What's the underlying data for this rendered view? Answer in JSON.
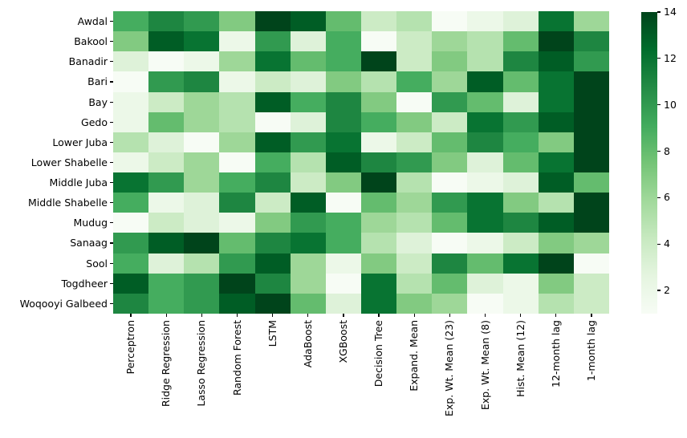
{
  "chart_data": {
    "type": "heatmap",
    "title": "",
    "xlabel": "",
    "ylabel": "",
    "rows": [
      "Awdal",
      "Bakool",
      "Banadir",
      "Bari",
      "Bay",
      "Gedo",
      "Lower Juba",
      "Lower Shabelle",
      "Middle Juba",
      "Middle Shabelle",
      "Mudug",
      "Sanaag",
      "Sool",
      "Togdheer",
      "Woqooyi Galbeed"
    ],
    "columns": [
      "Perceptron",
      "Ridge Regression",
      "Lasso Regression",
      "Random Forest",
      "LSTM",
      "AdaBoost",
      "XGBoost",
      "Decision Tree",
      "Expand. Mean",
      "Exp. Wt. Mean (23)",
      "Exp. Wt. Mean (8)",
      "Hist. Mean (12)",
      "12-month lag",
      "1-month lag"
    ],
    "values": [
      [
        9,
        11,
        10,
        7,
        14,
        13,
        8,
        4,
        5,
        1,
        2,
        3,
        12,
        6
      ],
      [
        7,
        13,
        12,
        2,
        10,
        3,
        9,
        1,
        4,
        6,
        5,
        8,
        14,
        11
      ],
      [
        3,
        1,
        2,
        6,
        12,
        8,
        9,
        14,
        4,
        7,
        5,
        11,
        13,
        10
      ],
      [
        1,
        10,
        11,
        2,
        4,
        3,
        7,
        5,
        9,
        6,
        13,
        8,
        12,
        14
      ],
      [
        2,
        4,
        6,
        5,
        13,
        9,
        11,
        7,
        1,
        10,
        8,
        3,
        12,
        14
      ],
      [
        2,
        8,
        6,
        5,
        1,
        3,
        11,
        9,
        7,
        4,
        12,
        10,
        13,
        14
      ],
      [
        5,
        3,
        1,
        6,
        13,
        10,
        12,
        2,
        4,
        8,
        11,
        9,
        7,
        14
      ],
      [
        2,
        4,
        6,
        1,
        9,
        5,
        13,
        11,
        10,
        7,
        3,
        8,
        12,
        14
      ],
      [
        12,
        10,
        6,
        9,
        11,
        4,
        7,
        14,
        5,
        1,
        2,
        3,
        13,
        8
      ],
      [
        9,
        2,
        3,
        11,
        4,
        13,
        1,
        8,
        6,
        10,
        12,
        7,
        5,
        14
      ],
      [
        1,
        4,
        3,
        2,
        7,
        10,
        9,
        6,
        5,
        8,
        12,
        11,
        13,
        14
      ],
      [
        10,
        13,
        14,
        8,
        11,
        12,
        9,
        5,
        3,
        1,
        2,
        4,
        7,
        6
      ],
      [
        9,
        3,
        5,
        10,
        13,
        6,
        2,
        7,
        4,
        11,
        8,
        12,
        14,
        1
      ],
      [
        13,
        9,
        10,
        14,
        11,
        6,
        1,
        12,
        5,
        8,
        3,
        2,
        7,
        4
      ],
      [
        11,
        9,
        10,
        13,
        14,
        8,
        3,
        12,
        7,
        6,
        1,
        2,
        5,
        4
      ]
    ],
    "vmin": 1,
    "vmax": 14,
    "colormap": {
      "name": "Greens",
      "stops": [
        "#f7fcf5",
        "#e5f5e0",
        "#c7e9c0",
        "#a1d99b",
        "#74c476",
        "#41ab5d",
        "#238b45",
        "#006d2c",
        "#00441b"
      ]
    },
    "colorbar_ticks": [
      2,
      4,
      6,
      8,
      10,
      12,
      14
    ],
    "legend_position": "right",
    "grid": false,
    "axis_text_color": "#000000"
  }
}
